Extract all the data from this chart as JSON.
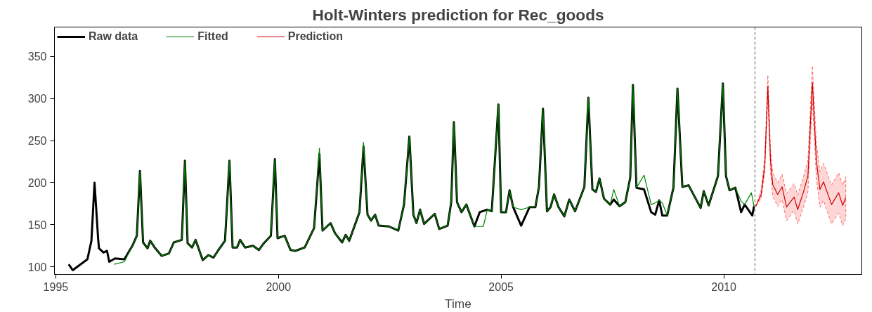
{
  "chart_data": {
    "type": "line",
    "title": "Holt-Winters prediction for Rec_goods",
    "xlabel": "Time",
    "xlim": [
      1994.97,
      2013.1
    ],
    "ylim": [
      91,
      385
    ],
    "xticks": [
      1995,
      2000,
      2005,
      2010
    ],
    "yticks": [
      100,
      150,
      200,
      250,
      300,
      350
    ],
    "grid": false,
    "legend": "top left",
    "ref_lines": [
      {
        "axis": "x",
        "value": 2010.7,
        "color": "#555555",
        "line_style": "dashed"
      }
    ],
    "series": [
      {
        "name": "Raw data",
        "color": "#000000",
        "x": [
          1995.29,
          1995.38,
          1995.71,
          1995.8,
          1995.87,
          1995.95,
          1995.97,
          1996.07,
          1996.15,
          1996.2,
          1996.33,
          1996.54,
          1996.72,
          1996.82,
          1996.89,
          1996.96,
          1997.06,
          1997.12,
          1997.22,
          1997.38,
          1997.54,
          1997.65,
          1997.83,
          1997.9,
          1997.96,
          1998.06,
          1998.14,
          1998.3,
          1998.43,
          1998.54,
          1998.64,
          1998.8,
          1998.9,
          1998.97,
          1999.07,
          1999.14,
          1999.25,
          1999.43,
          1999.56,
          1999.67,
          1999.83,
          1999.92,
          1999.98,
          2000.14,
          2000.27,
          2000.38,
          2000.59,
          2000.8,
          2000.92,
          2000.99,
          2001.17,
          2001.27,
          2001.43,
          2001.51,
          2001.59,
          2001.82,
          2001.91,
          2002.0,
          2002.08,
          2002.17,
          2002.25,
          2002.48,
          2002.69,
          2002.82,
          2002.94,
          2003.03,
          2003.1,
          2003.18,
          2003.27,
          2003.51,
          2003.61,
          2003.8,
          2003.88,
          2003.94,
          2004.01,
          2004.11,
          2004.22,
          2004.4,
          2004.52,
          2004.69,
          2004.79,
          2004.94,
          2005.0,
          2005.11,
          2005.19,
          2005.27,
          2005.45,
          2005.64,
          2005.77,
          2005.85,
          2005.94,
          2006.03,
          2006.11,
          2006.19,
          2006.29,
          2006.42,
          2006.53,
          2006.66,
          2006.87,
          2006.96,
          2007.05,
          2007.13,
          2007.21,
          2007.31,
          2007.45,
          2007.53,
          2007.66,
          2007.79,
          2007.9,
          2007.96,
          2008.04,
          2008.21,
          2008.37,
          2008.46,
          2008.55,
          2008.62,
          2008.73,
          2008.87,
          2008.96,
          2009.07,
          2009.21,
          2009.48,
          2009.55,
          2009.66,
          2009.87,
          2009.98,
          2010.05,
          2010.13,
          2010.26,
          2010.39,
          2010.47,
          2010.64,
          2010.68
        ],
        "values": [
          103,
          96,
          109,
          131,
          200,
          134,
          122,
          117,
          119,
          106,
          110,
          109,
          125,
          137,
          214,
          129,
          122,
          131,
          123,
          113,
          116,
          129,
          132,
          226,
          128,
          123,
          132,
          108,
          114,
          111,
          119,
          131,
          226,
          123,
          123,
          132,
          123,
          125,
          120,
          128,
          137,
          228,
          134,
          137,
          120,
          119,
          123,
          146,
          234,
          143,
          152,
          140,
          129,
          138,
          131,
          165,
          243,
          162,
          155,
          162,
          149,
          148,
          143,
          174,
          255,
          162,
          152,
          168,
          151,
          163,
          145,
          149,
          177,
          272,
          177,
          165,
          174,
          148,
          165,
          168,
          166,
          293,
          165,
          165,
          191,
          171,
          149,
          171,
          171,
          195,
          288,
          166,
          171,
          186,
          171,
          160,
          180,
          166,
          195,
          301,
          192,
          189,
          205,
          181,
          174,
          180,
          172,
          177,
          206,
          316,
          194,
          192,
          165,
          162,
          179,
          161,
          161,
          194,
          312,
          195,
          197,
          170,
          190,
          173,
          208,
          318,
          208,
          191,
          194,
          165,
          174,
          161,
          172
        ]
      },
      {
        "name": "Fitted",
        "color": "#008000",
        "x": [
          1996.31,
          1996.54,
          1996.72,
          1996.82,
          1996.89,
          1996.96,
          1997.06,
          1997.12,
          1997.22,
          1997.38,
          1997.54,
          1997.65,
          1997.83,
          1997.9,
          1997.96,
          1998.06,
          1998.14,
          1998.3,
          1998.43,
          1998.54,
          1998.64,
          1998.8,
          1998.9,
          1998.97,
          1999.07,
          1999.14,
          1999.25,
          1999.43,
          1999.56,
          1999.67,
          1999.83,
          1999.92,
          1999.98,
          2000.14,
          2000.27,
          2000.38,
          2000.59,
          2000.8,
          2000.92,
          2000.99,
          2001.17,
          2001.27,
          2001.43,
          2001.51,
          2001.59,
          2001.82,
          2001.91,
          2002.0,
          2002.08,
          2002.17,
          2002.25,
          2002.48,
          2002.69,
          2002.82,
          2002.94,
          2003.03,
          2003.1,
          2003.18,
          2003.27,
          2003.51,
          2003.61,
          2003.8,
          2003.88,
          2003.94,
          2004.01,
          2004.11,
          2004.22,
          2004.4,
          2004.6,
          2004.69,
          2004.79,
          2004.94,
          2005.0,
          2005.11,
          2005.19,
          2005.27,
          2005.45,
          2005.64,
          2005.77,
          2005.85,
          2005.94,
          2006.03,
          2006.11,
          2006.19,
          2006.29,
          2006.42,
          2006.53,
          2006.66,
          2006.87,
          2006.96,
          2007.05,
          2007.13,
          2007.21,
          2007.31,
          2007.45,
          2007.53,
          2007.66,
          2007.79,
          2007.9,
          2007.96,
          2008.04,
          2008.21,
          2008.37,
          2008.46,
          2008.55,
          2008.62,
          2008.73,
          2008.87,
          2008.96,
          2009.07,
          2009.21,
          2009.48,
          2009.55,
          2009.66,
          2009.87,
          2009.98,
          2010.05,
          2010.13,
          2010.26,
          2010.39,
          2010.47,
          2010.62,
          2010.68
        ],
        "values": [
          103,
          106,
          125,
          137,
          214,
          129,
          122,
          131,
          123,
          113,
          116,
          129,
          132,
          226,
          128,
          123,
          132,
          108,
          114,
          111,
          119,
          131,
          226,
          123,
          123,
          132,
          123,
          125,
          120,
          128,
          137,
          228,
          134,
          137,
          120,
          119,
          123,
          146,
          241,
          143,
          152,
          140,
          129,
          138,
          131,
          165,
          248,
          162,
          155,
          162,
          149,
          148,
          143,
          174,
          255,
          162,
          152,
          168,
          151,
          163,
          145,
          149,
          177,
          272,
          177,
          165,
          174,
          148,
          148,
          168,
          166,
          293,
          165,
          165,
          191,
          171,
          168,
          171,
          171,
          195,
          288,
          166,
          171,
          186,
          171,
          160,
          180,
          166,
          195,
          301,
          192,
          189,
          205,
          181,
          174,
          192,
          172,
          177,
          206,
          316,
          194,
          209,
          174,
          176,
          179,
          176,
          161,
          194,
          312,
          195,
          197,
          170,
          190,
          173,
          208,
          318,
          208,
          191,
          194,
          178,
          174,
          188,
          172
        ]
      },
      {
        "name": "Prediction",
        "color": "#cc0000",
        "x": [
          2010.72,
          2010.84,
          2010.92,
          2010.99,
          2011.05,
          2011.1,
          2011.21,
          2011.31,
          2011.41,
          2011.58,
          2011.66,
          2011.79,
          2011.89,
          2011.99,
          2012.08,
          2012.16,
          2012.24,
          2012.42,
          2012.58,
          2012.67,
          2012.74
        ],
        "values": [
          172,
          186,
          220,
          315,
          226,
          198,
          186,
          195,
          171,
          183,
          168,
          189,
          208,
          319,
          226,
          192,
          201,
          174,
          188,
          173,
          182
        ],
        "upper": [
          172,
          191,
          229,
          328,
          239,
          212,
          200,
          210,
          187,
          199,
          185,
          207,
          227,
          339,
          247,
          213,
          223,
          197,
          212,
          197,
          207
        ],
        "lower": [
          172,
          181,
          211,
          302,
          213,
          184,
          172,
          180,
          155,
          167,
          151,
          171,
          189,
          299,
          205,
          171,
          179,
          151,
          164,
          149,
          157
        ]
      }
    ]
  }
}
